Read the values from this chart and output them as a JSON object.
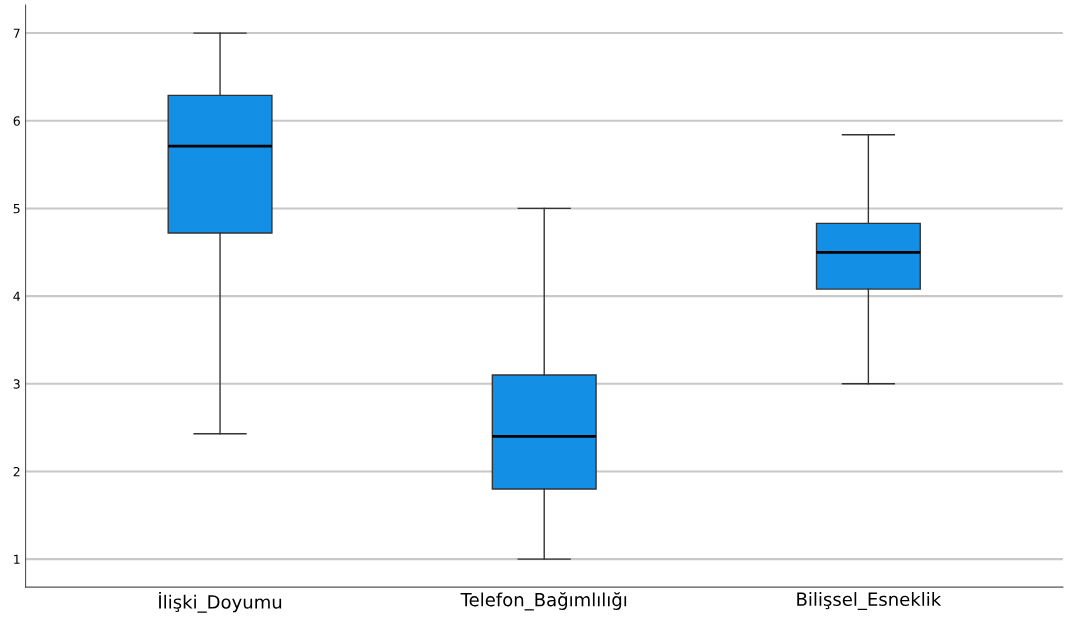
{
  "chart_data": {
    "type": "box",
    "categories": [
      "İlişki_Doyumu",
      "Telefon_Bağımlılığı",
      "Bilişsel_Esneklik"
    ],
    "boxes": [
      {
        "low": 2.43,
        "q1": 4.72,
        "median": 5.71,
        "q3": 6.29,
        "high": 7.0
      },
      {
        "low": 1.0,
        "q1": 1.8,
        "median": 2.4,
        "q3": 3.1,
        "high": 5.0
      },
      {
        "low": 3.0,
        "q1": 4.08,
        "median": 4.5,
        "q3": 4.83,
        "high": 5.84
      }
    ],
    "color": "#1390e6",
    "ylim": [
      0.68,
      7.32
    ],
    "yticks": [
      1,
      2,
      3,
      4,
      5,
      6,
      7
    ],
    "grid": "y"
  }
}
